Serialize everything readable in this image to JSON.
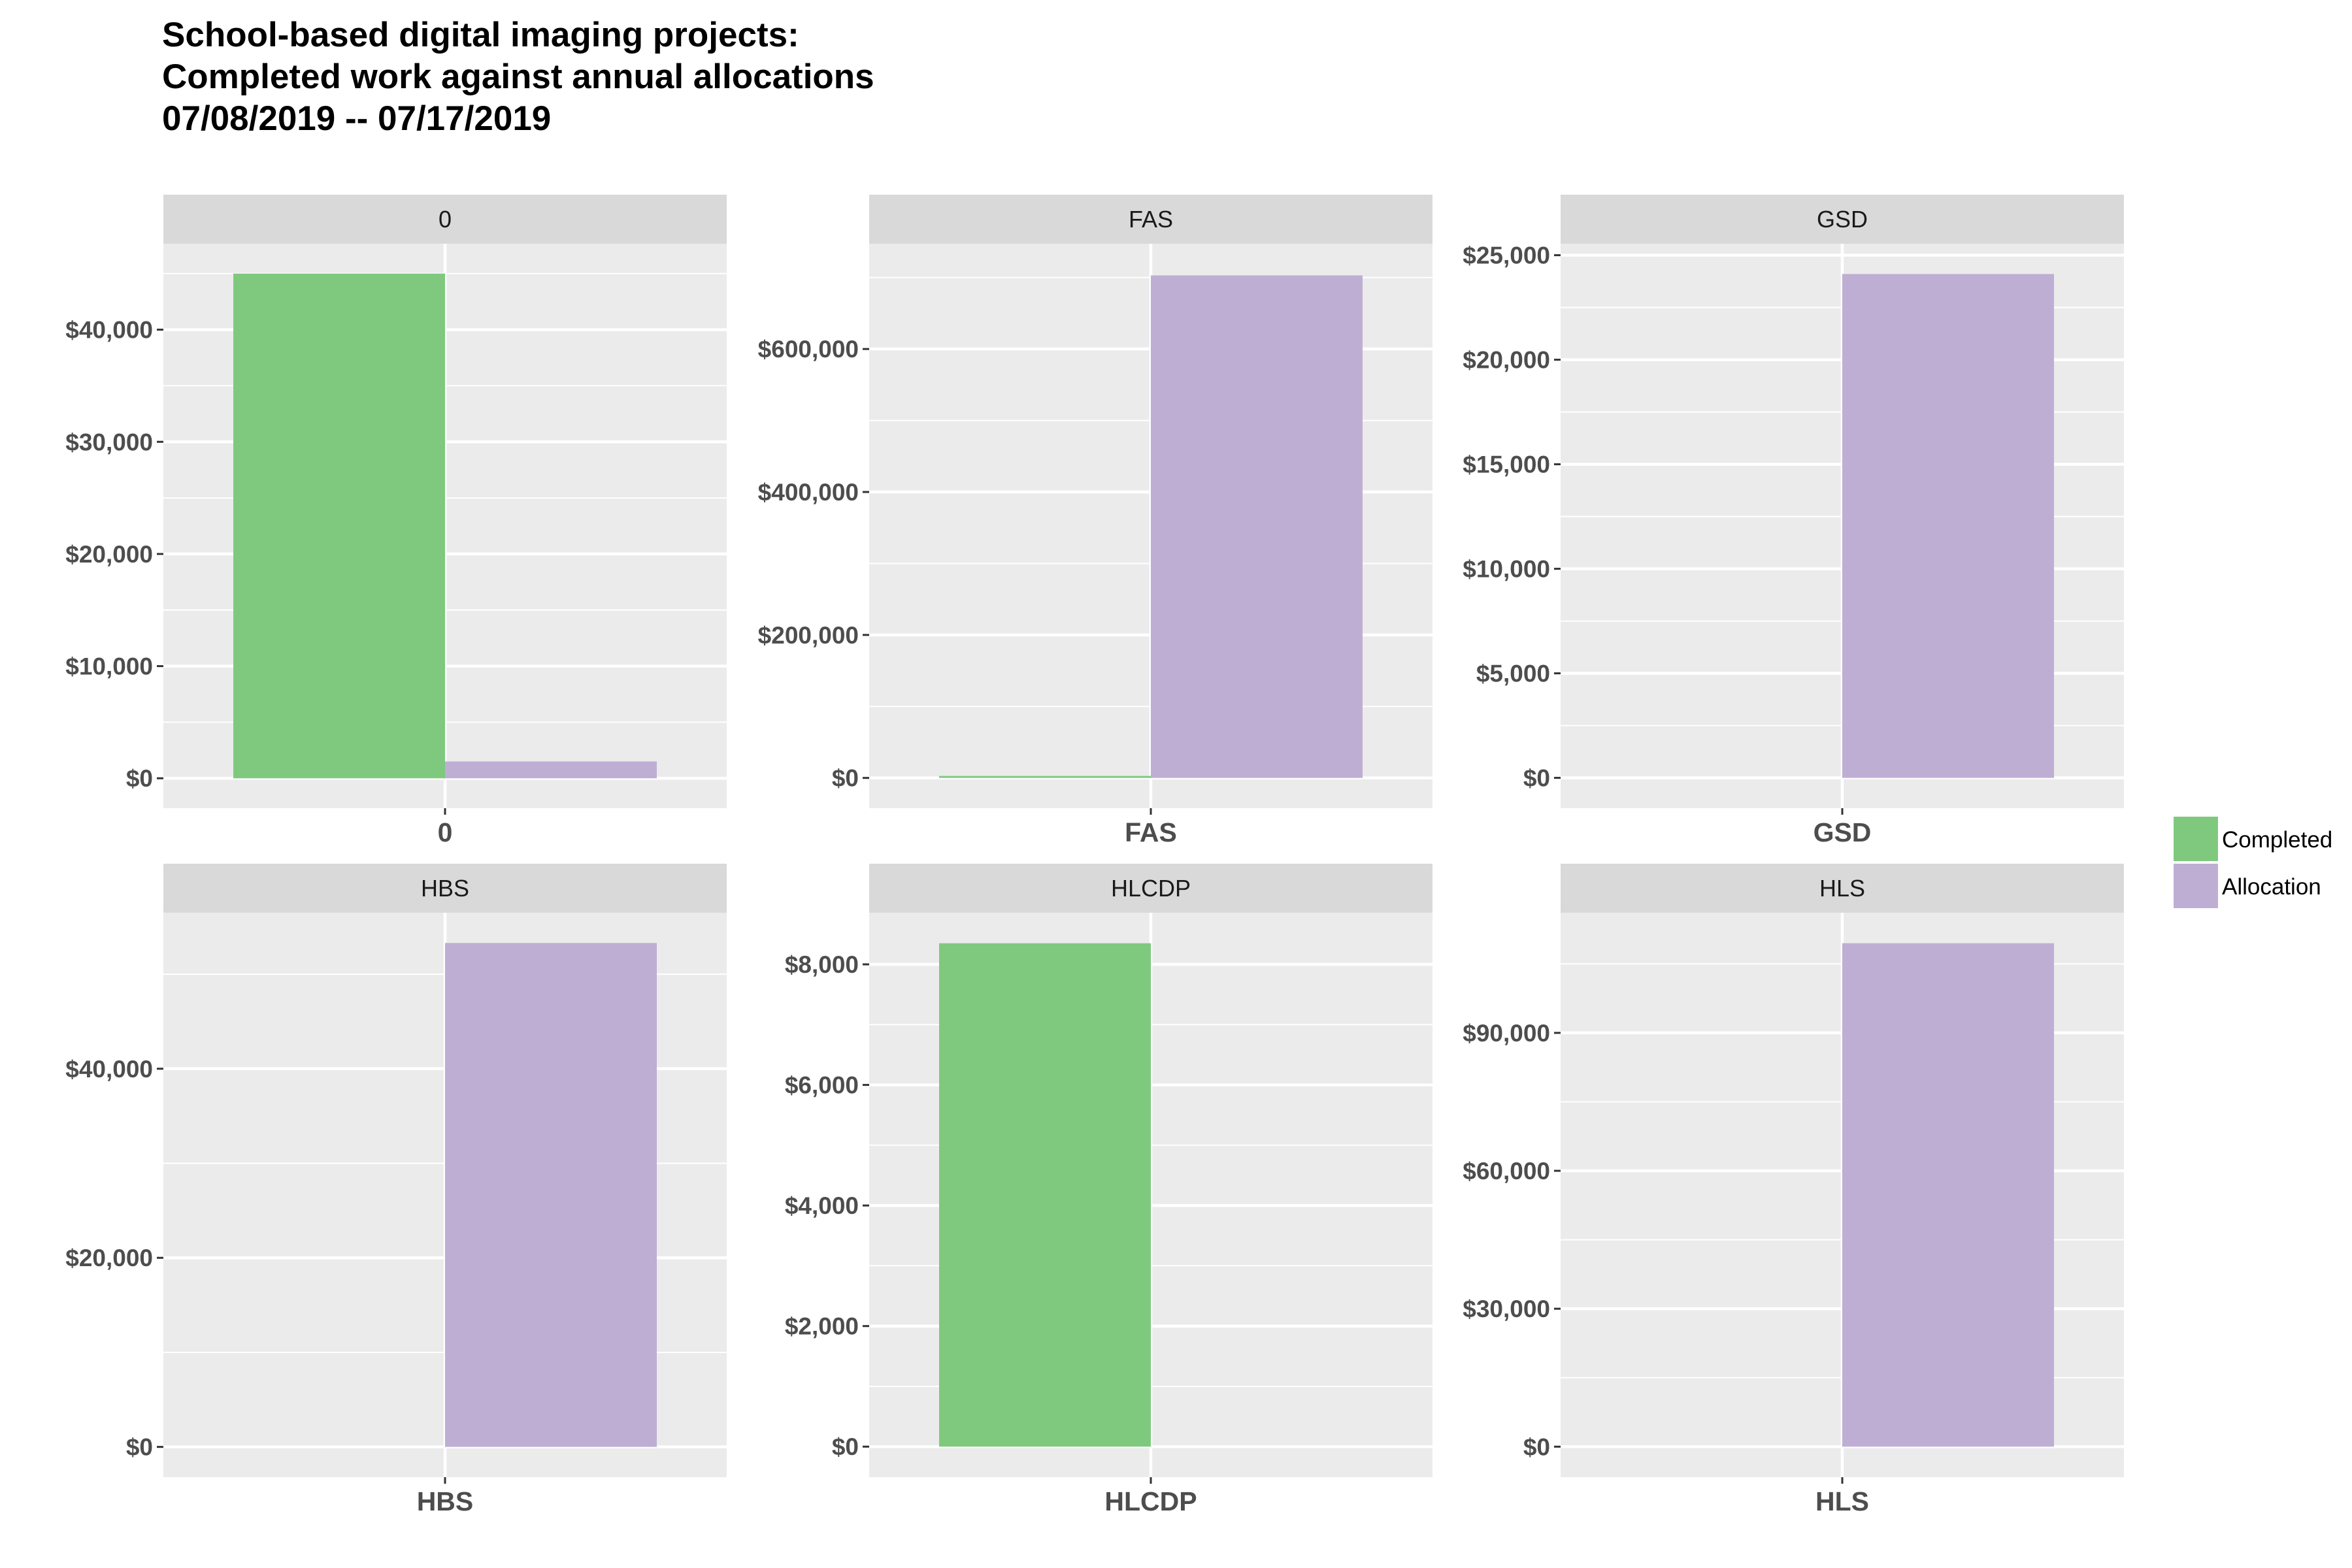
{
  "title_lines": [
    "School-based digital imaging projects:",
    "Completed work against annual allocations",
    "07/08/2019 -- 07/17/2019"
  ],
  "colors": {
    "completed": "#7fc97f",
    "allocation": "#beaed4",
    "panel_bg": "#ebebeb",
    "strip_bg": "#d9d9d9",
    "grid": "#ffffff"
  },
  "chart_data": {
    "type": "bar",
    "layout": "facet-grid 2x3, bars dodged, free y scales",
    "legend_position": "right",
    "grid": true,
    "series_names": [
      "Completed",
      "Allocation"
    ],
    "facets": [
      {
        "name": "0",
        "x_label": "0",
        "values": {
          "Completed": 45000,
          "Allocation": 1500
        },
        "ylim": [
          -2200,
          47200
        ],
        "yticks": [
          0,
          10000,
          20000,
          30000,
          40000
        ],
        "ytick_labels": [
          "$0",
          "$10,000",
          "$20,000",
          "$30,000",
          "$40,000"
        ]
      },
      {
        "name": "FAS",
        "x_label": "FAS",
        "values": {
          "Completed": 2000,
          "Allocation": 703000
        },
        "ylim": [
          -35000,
          740000
        ],
        "yticks": [
          0,
          200000,
          400000,
          600000
        ],
        "ytick_labels": [
          "$0",
          "$200,000",
          "$400,000",
          "$600,000"
        ]
      },
      {
        "name": "GSD",
        "x_label": "GSD",
        "values": {
          "Completed": 0,
          "Allocation": 24100
        },
        "ylim": [
          -1200,
          25300
        ],
        "yticks": [
          0,
          5000,
          10000,
          15000,
          20000,
          25000
        ],
        "ytick_labels": [
          "$0",
          "$5,000",
          "$10,000",
          "$15,000",
          "$20,000",
          "$25,000"
        ]
      },
      {
        "name": "HBS",
        "x_label": "HBS",
        "values": {
          "Completed": 0,
          "Allocation": 53300
        },
        "ylim": [
          -2650,
          55950
        ],
        "yticks": [
          0,
          20000,
          40000
        ],
        "ytick_labels": [
          "$0",
          "$20,000",
          "$40,000"
        ]
      },
      {
        "name": "HLCDP",
        "x_label": "HLCDP",
        "values": {
          "Completed": 8350,
          "Allocation": 0
        },
        "ylim": [
          -420,
          8770
        ],
        "yticks": [
          0,
          2000,
          4000,
          6000,
          8000
        ],
        "ytick_labels": [
          "$0",
          "$2,000",
          "$4,000",
          "$6,000",
          "$8,000"
        ]
      },
      {
        "name": "HLS",
        "x_label": "HLS",
        "values": {
          "Completed": 0,
          "Allocation": 109500
        },
        "ylim": [
          -5500,
          115000
        ],
        "yticks": [
          0,
          30000,
          60000,
          90000
        ],
        "ytick_labels": [
          "$0",
          "$30,000",
          "$60,000",
          "$90,000"
        ]
      }
    ]
  }
}
